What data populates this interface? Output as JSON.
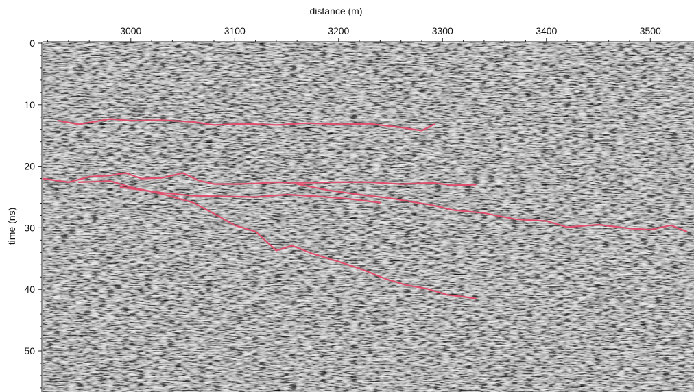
{
  "chart_data": {
    "type": "line",
    "xlabel": "distance (m)",
    "ylabel": "time (ns)",
    "xlim": [
      2915,
      3535
    ],
    "ylim": [
      0,
      56.5
    ],
    "y_inverted": true,
    "x_axis_position": "top",
    "xticks": [
      3000,
      3100,
      3200,
      3300,
      3400,
      3500
    ],
    "yticks": [
      0,
      10,
      20,
      30,
      40,
      50
    ],
    "background": "grayscale radar section with horizontal reflection texture",
    "series": [
      {
        "color": "#e0506e",
        "points": [
          [
            2930,
            12.6
          ],
          [
            2950,
            13.2
          ],
          [
            2980,
            12.3
          ],
          [
            3000,
            12.6
          ],
          [
            3030,
            12.5
          ],
          [
            3060,
            12.8
          ],
          [
            3080,
            13.3
          ],
          [
            3110,
            13.1
          ],
          [
            3140,
            13.3
          ],
          [
            3170,
            13.0
          ],
          [
            3200,
            13.2
          ],
          [
            3230,
            13.1
          ],
          [
            3260,
            13.7
          ],
          [
            3280,
            14.2
          ],
          [
            3292,
            13.2
          ]
        ]
      },
      {
        "color": "#e0506e",
        "points": [
          [
            2915,
            22.0
          ],
          [
            2940,
            22.6
          ],
          [
            2960,
            21.7
          ],
          [
            2980,
            21.5
          ],
          [
            2995,
            21.1
          ],
          [
            3010,
            22.0
          ],
          [
            3030,
            21.9
          ],
          [
            3050,
            21.1
          ],
          [
            3065,
            22.3
          ],
          [
            3080,
            22.9
          ],
          [
            3100,
            22.9
          ],
          [
            3120,
            22.8
          ],
          [
            3140,
            22.6
          ],
          [
            3160,
            22.7
          ],
          [
            3200,
            22.6
          ],
          [
            3230,
            22.6
          ],
          [
            3260,
            22.9
          ],
          [
            3290,
            22.7
          ],
          [
            3310,
            23.1
          ],
          [
            3332,
            23.0
          ]
        ]
      },
      {
        "color": "#e0506e",
        "points": [
          [
            3160,
            22.9
          ],
          [
            3190,
            23.9
          ],
          [
            3220,
            24.6
          ],
          [
            3250,
            25.2
          ],
          [
            3275,
            25.9
          ],
          [
            3290,
            26.3
          ],
          [
            3310,
            27.1
          ],
          [
            3340,
            27.6
          ],
          [
            3370,
            28.6
          ],
          [
            3400,
            28.9
          ],
          [
            3420,
            29.9
          ],
          [
            3450,
            29.5
          ],
          [
            3480,
            30.1
          ],
          [
            3500,
            30.3
          ],
          [
            3520,
            29.6
          ],
          [
            3535,
            30.6
          ]
        ]
      },
      {
        "color": "#e0506e",
        "points": [
          [
            2950,
            22.6
          ],
          [
            2980,
            22.4
          ],
          [
            3000,
            23.4
          ],
          [
            3030,
            24.5
          ],
          [
            3060,
            25.9
          ],
          [
            3080,
            27.7
          ],
          [
            3100,
            29.6
          ],
          [
            3120,
            30.6
          ],
          [
            3140,
            33.7
          ],
          [
            3155,
            32.9
          ],
          [
            3175,
            34.2
          ],
          [
            3200,
            35.5
          ],
          [
            3220,
            36.6
          ],
          [
            3245,
            38.3
          ],
          [
            3265,
            39.3
          ],
          [
            3285,
            39.9
          ],
          [
            3305,
            40.9
          ],
          [
            3320,
            41.2
          ],
          [
            3332,
            41.5
          ]
        ]
      },
      {
        "color": "#e0506e",
        "points": [
          [
            2990,
            23.4
          ],
          [
            3030,
            24.3
          ],
          [
            3060,
            24.8
          ],
          [
            3090,
            24.9
          ],
          [
            3120,
            25.0
          ],
          [
            3150,
            24.6
          ],
          [
            3180,
            24.9
          ],
          [
            3210,
            25.3
          ],
          [
            3240,
            25.9
          ]
        ]
      }
    ]
  }
}
